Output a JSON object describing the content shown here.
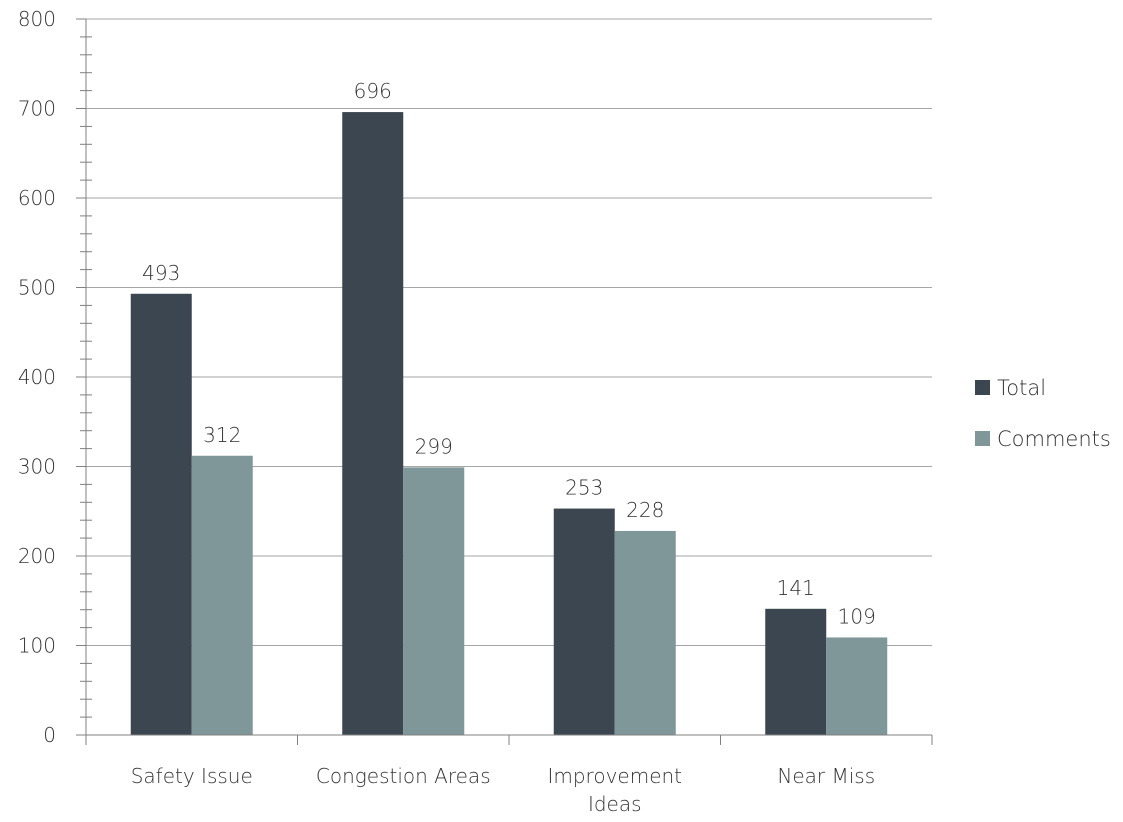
{
  "chart_data": {
    "type": "bar",
    "categories": [
      [
        "Safety Issue"
      ],
      [
        "Congestion Areas"
      ],
      [
        "Improvement",
        "Ideas"
      ],
      [
        "Near Miss"
      ]
    ],
    "series": [
      {
        "name": "Total",
        "values": [
          493,
          696,
          253,
          141
        ],
        "color": "#3c4650"
      },
      {
        "name": "Comments",
        "values": [
          312,
          299,
          228,
          109
        ],
        "color": "#7f9799"
      }
    ],
    "ylim": [
      0,
      800
    ],
    "y_ticks": [
      0,
      100,
      200,
      300,
      400,
      500,
      600,
      700,
      800
    ],
    "y_minor_step": 20,
    "grid": true,
    "legend_position": "right",
    "title": "",
    "xlabel": "",
    "ylabel": "",
    "colors": {
      "grid": "#a6a6a6",
      "axis": "#808080",
      "text": "#333333"
    }
  }
}
